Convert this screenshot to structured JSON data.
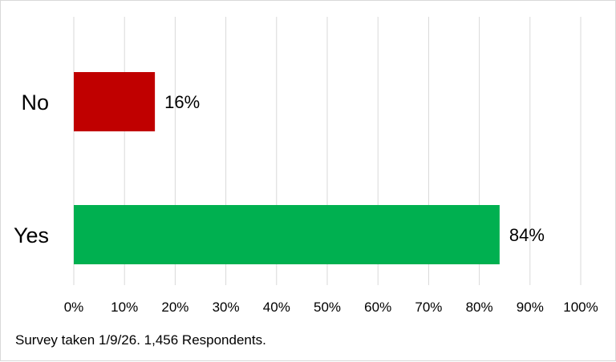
{
  "chart_data": {
    "type": "bar",
    "orientation": "horizontal",
    "categories": [
      "No",
      "Yes"
    ],
    "values": [
      16,
      84
    ],
    "data_labels": [
      "16%",
      "84%"
    ],
    "colors": [
      "#c00000",
      "#00b050"
    ],
    "xlim": [
      0,
      100
    ],
    "x_ticks": [
      "0%",
      "10%",
      "20%",
      "30%",
      "40%",
      "50%",
      "60%",
      "70%",
      "80%",
      "90%",
      "100%"
    ],
    "grid": "vertical gridlines",
    "legend": "none"
  },
  "footnote": "Survey taken 1/9/26. 1,456 Respondents."
}
